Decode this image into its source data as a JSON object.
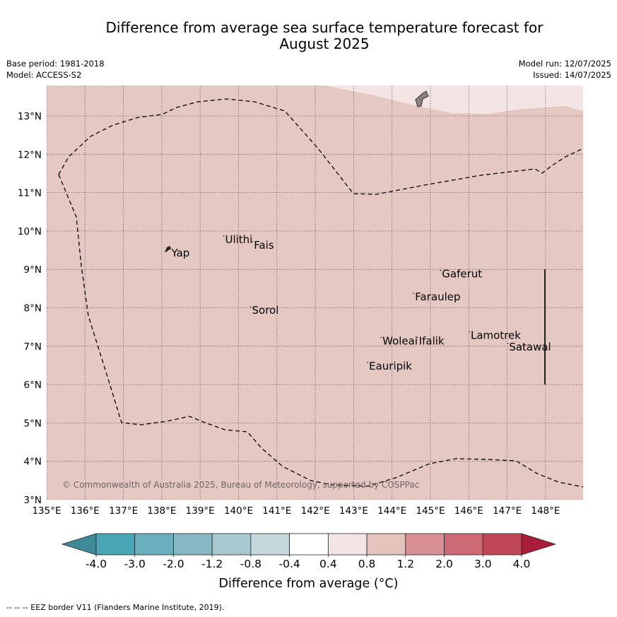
{
  "title_line1": "Difference from average sea surface temperature forecast for",
  "title_line2": "August 2025",
  "meta_left": {
    "base_period": "Base period: 1981-2018",
    "model": "Model: ACCESS-S2"
  },
  "meta_right": {
    "model_run": "Model run: 12/07/2025",
    "issued": "Issued: 14/07/2025"
  },
  "copyright": "© Commonwealth of Australia 2025, Bureau of Meteorology, supported by COSPPac",
  "lon_ticks": [
    "135°E",
    "136°E",
    "137°E",
    "138°E",
    "139°E",
    "140°E",
    "141°E",
    "142°E",
    "143°E",
    "144°E",
    "145°E",
    "146°E",
    "147°E",
    "148°E"
  ],
  "lat_ticks": [
    "3°N",
    "4°N",
    "5°N",
    "6°N",
    "7°N",
    "8°N",
    "9°N",
    "10°N",
    "11°N",
    "12°N",
    "13°N"
  ],
  "places": [
    {
      "name": "Yap",
      "lon": 138.25,
      "lat": 9.45
    },
    {
      "name": "Ulithi",
      "lon": 139.65,
      "lat": 9.8
    },
    {
      "name": "Fais",
      "lon": 140.4,
      "lat": 9.65
    },
    {
      "name": "Gaferut",
      "lon": 145.3,
      "lat": 8.9
    },
    {
      "name": "Faraulep",
      "lon": 144.6,
      "lat": 8.3
    },
    {
      "name": "Sorol",
      "lon": 140.35,
      "lat": 7.95
    },
    {
      "name": "Lamotrek",
      "lon": 146.05,
      "lat": 7.3
    },
    {
      "name": "Satawal",
      "lon": 147.05,
      "lat": 7.0
    },
    {
      "name": "Woleai",
      "lon": 143.75,
      "lat": 7.15
    },
    {
      "name": "Ifalik",
      "lon": 144.7,
      "lat": 7.15
    },
    {
      "name": "Eauripik",
      "lon": 143.4,
      "lat": 6.5
    }
  ],
  "colorbar": {
    "ticks": [
      "-4.0",
      "-3.0",
      "-2.0",
      "-1.2",
      "-0.8",
      "-0.4",
      "0.4",
      "0.8",
      "1.2",
      "2.0",
      "3.0",
      "4.0"
    ],
    "colors": [
      "#3f8a98",
      "#4aa5b5",
      "#6aafbd",
      "#88b7c4",
      "#a8c9d0",
      "#c7d8dc",
      "#ffffff",
      "#f3e5e3",
      "#e6c4be",
      "#d88f95",
      "#cc6a76",
      "#c04856",
      "#a81d3a"
    ],
    "label": "Difference from average (°C)"
  },
  "legend_note": "--  --  -- EEZ border V11 (Flanders Marine Institute, 2019).",
  "colors": {
    "map_fill": "#e6c8c2",
    "light_region": "#f3e5e3",
    "land": "#8a8282"
  }
}
